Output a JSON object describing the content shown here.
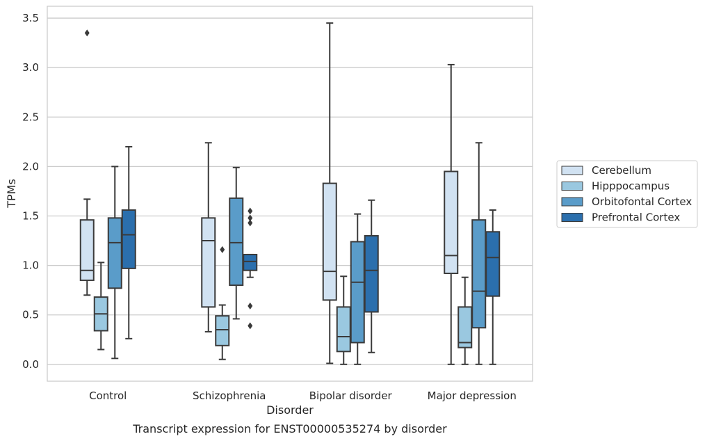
{
  "chart_data": {
    "type": "box",
    "title": "",
    "caption": "Transcript expression for ENST00000535274 by disorder",
    "xlabel": "Disorder",
    "ylabel": "TPMs",
    "ylim": [
      -0.17,
      3.62
    ],
    "yticks": [
      "0.0",
      "0.5",
      "1.0",
      "1.5",
      "2.0",
      "2.5",
      "3.0",
      "3.5"
    ],
    "grid": true,
    "legend_position": "right",
    "categories": [
      "Control",
      "Schizophrenia",
      "Bipolar disorder",
      "Major depression"
    ],
    "series": [
      {
        "name": "Cerebellum",
        "color": "#d1e2f2",
        "boxes": [
          {
            "whislo": 0.7,
            "q1": 0.85,
            "med": 0.95,
            "q3": 1.46,
            "whishi": 1.67,
            "fliers": [
              3.35
            ]
          },
          {
            "whislo": 0.33,
            "q1": 0.58,
            "med": 1.25,
            "q3": 1.48,
            "whishi": 2.24,
            "fliers": []
          },
          {
            "whislo": 0.01,
            "q1": 0.65,
            "med": 0.94,
            "q3": 1.83,
            "whishi": 3.45,
            "fliers": []
          },
          {
            "whislo": 0.0,
            "q1": 0.92,
            "med": 1.1,
            "q3": 1.95,
            "whishi": 3.03,
            "fliers": []
          }
        ]
      },
      {
        "name": "Hipppocampus",
        "color": "#9ac8e0",
        "boxes": [
          {
            "whislo": 0.15,
            "q1": 0.34,
            "med": 0.51,
            "q3": 0.68,
            "whishi": 1.03,
            "fliers": []
          },
          {
            "whislo": 0.05,
            "q1": 0.19,
            "med": 0.35,
            "q3": 0.49,
            "whishi": 0.6,
            "fliers": [
              1.16
            ]
          },
          {
            "whislo": 0.0,
            "q1": 0.13,
            "med": 0.28,
            "q3": 0.58,
            "whishi": 0.89,
            "fliers": []
          },
          {
            "whislo": 0.0,
            "q1": 0.17,
            "med": 0.22,
            "q3": 0.58,
            "whishi": 0.88,
            "fliers": []
          }
        ]
      },
      {
        "name": "Orbitofontal Cortex",
        "color": "#5a9cc9",
        "boxes": [
          {
            "whislo": 0.06,
            "q1": 0.77,
            "med": 1.23,
            "q3": 1.48,
            "whishi": 2.0,
            "fliers": []
          },
          {
            "whislo": 0.46,
            "q1": 0.8,
            "med": 1.23,
            "q3": 1.68,
            "whishi": 1.99,
            "fliers": []
          },
          {
            "whislo": 0.0,
            "q1": 0.22,
            "med": 0.83,
            "q3": 1.24,
            "whishi": 1.52,
            "fliers": []
          },
          {
            "whislo": 0.0,
            "q1": 0.37,
            "med": 0.74,
            "q3": 1.46,
            "whishi": 2.24,
            "fliers": []
          }
        ]
      },
      {
        "name": "Prefrontal Cortex",
        "color": "#2b6fad",
        "boxes": [
          {
            "whislo": 0.26,
            "q1": 0.97,
            "med": 1.31,
            "q3": 1.56,
            "whishi": 2.2,
            "fliers": []
          },
          {
            "whislo": 0.88,
            "q1": 0.95,
            "med": 1.04,
            "q3": 1.11,
            "whishi": 1.11,
            "fliers": [
              1.55,
              1.48,
              1.43,
              0.59,
              0.39
            ]
          },
          {
            "whislo": 0.12,
            "q1": 0.53,
            "med": 0.95,
            "q3": 1.3,
            "whishi": 1.66,
            "fliers": []
          },
          {
            "whislo": 0.0,
            "q1": 0.69,
            "med": 1.08,
            "q3": 1.34,
            "whishi": 1.56,
            "fliers": []
          }
        ]
      }
    ]
  }
}
